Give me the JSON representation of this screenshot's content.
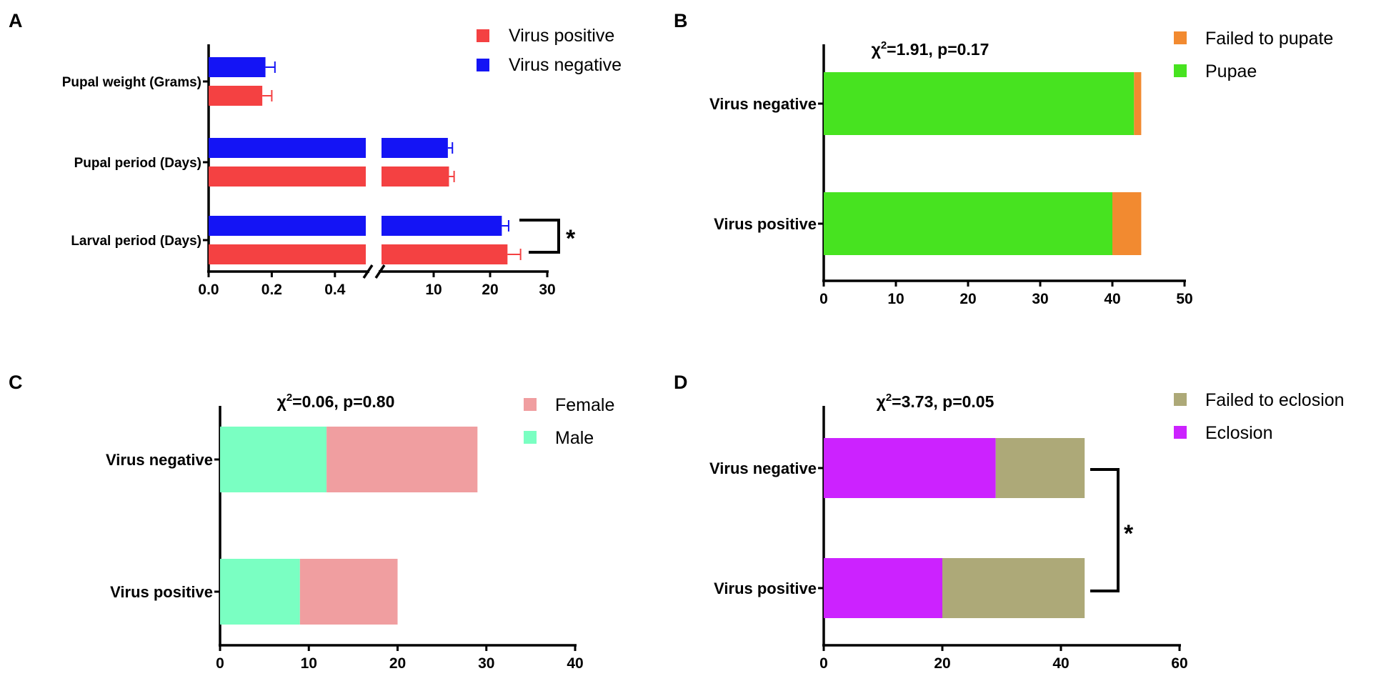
{
  "colors": {
    "virus_positive": "#f44142",
    "virus_negative": "#1414f5",
    "pupae": "#47e320",
    "failed_to_pupate": "#f28a30",
    "male": "#7affc2",
    "female": "#f09ea0",
    "eclosion": "#cc22ff",
    "failed_to_eclosion": "#ada978"
  },
  "chart_data": [
    {
      "panel": "A",
      "type": "bar",
      "orientation": "horizontal",
      "categories": [
        "Pupal weight (Grams)",
        "Pupal period (Days)",
        "Larval period (Days)"
      ],
      "series": [
        {
          "name": "Virus negative",
          "values": [
            0.18,
            12.5,
            22.0
          ],
          "errors": [
            0.03,
            0.8,
            1.2
          ]
        },
        {
          "name": "Virus positive",
          "values": [
            0.17,
            12.7,
            23.0
          ],
          "errors": [
            0.03,
            0.9,
            2.3
          ]
        }
      ],
      "axis_break": true,
      "segment1": {
        "range": [
          0,
          0.5
        ],
        "ticks": [
          0.0,
          0.2,
          0.4
        ],
        "tick_labels": [
          "0.0",
          "0.2",
          "0.4"
        ]
      },
      "segment2": {
        "range": [
          0,
          30
        ],
        "ticks": [
          10,
          20,
          30
        ],
        "tick_labels": [
          "10",
          "20",
          "30"
        ]
      },
      "significance": [
        {
          "category": "Larval period (Days)",
          "label": "*"
        }
      ]
    },
    {
      "panel": "B",
      "type": "bar",
      "orientation": "horizontal",
      "stacked": true,
      "annotation": {
        "chi": "χ",
        "sup": "2",
        "rest": "=1.91, p=0.17"
      },
      "categories": [
        "Virus negative",
        "Virus positive"
      ],
      "series": [
        {
          "name": "Pupae",
          "values": [
            43,
            40
          ]
        },
        {
          "name": "Failed to pupate",
          "values": [
            1,
            4
          ]
        }
      ],
      "legend_order": [
        "Failed to pupate",
        "Pupae"
      ],
      "xlim": [
        0,
        50
      ],
      "ticks": [
        0,
        10,
        20,
        30,
        40,
        50
      ],
      "tick_labels": [
        "0",
        "10",
        "20",
        "30",
        "40",
        "50"
      ]
    },
    {
      "panel": "C",
      "type": "bar",
      "orientation": "horizontal",
      "stacked": true,
      "annotation": {
        "chi": "χ",
        "sup": "2",
        "rest": "=0.06, p=0.80"
      },
      "categories": [
        "Virus negative",
        "Virus positive"
      ],
      "series": [
        {
          "name": "Male",
          "values": [
            12,
            9
          ]
        },
        {
          "name": "Female",
          "values": [
            17,
            11
          ]
        }
      ],
      "legend_order": [
        "Female",
        "Male"
      ],
      "xlim": [
        0,
        40
      ],
      "ticks": [
        0,
        10,
        20,
        30,
        40
      ],
      "tick_labels": [
        "0",
        "10",
        "20",
        "30",
        "40"
      ]
    },
    {
      "panel": "D",
      "type": "bar",
      "orientation": "horizontal",
      "stacked": true,
      "annotation": {
        "chi": "χ",
        "sup": "2",
        "rest": "=3.73, p=0.05"
      },
      "categories": [
        "Virus negative",
        "Virus positive"
      ],
      "series": [
        {
          "name": "Eclosion",
          "values": [
            29,
            20
          ]
        },
        {
          "name": "Failed to eclosion",
          "values": [
            15,
            24
          ]
        }
      ],
      "legend_order": [
        "Failed to eclosion",
        "Eclosion"
      ],
      "xlim": [
        0,
        60
      ],
      "ticks": [
        0,
        20,
        40,
        60
      ],
      "tick_labels": [
        "0",
        "20",
        "40",
        "60"
      ],
      "significance": [
        {
          "categories": [
            "Virus negative",
            "Virus positive"
          ],
          "label": "*"
        }
      ]
    }
  ]
}
